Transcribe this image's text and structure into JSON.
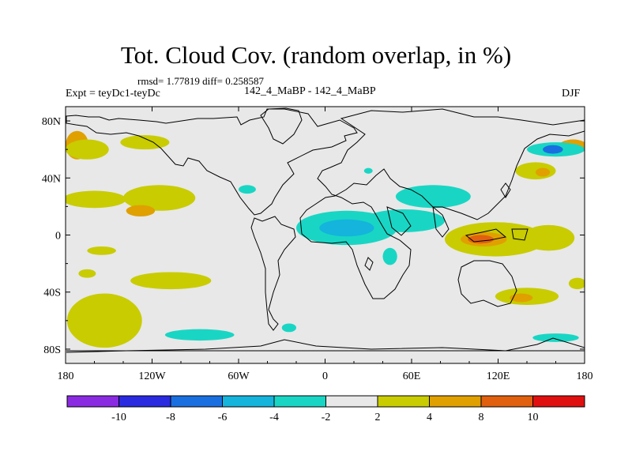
{
  "header": {
    "title": "Tot. Cloud Cov. (random overlap, in %)",
    "stats": "rmsd= 1.77819 diff= 0.258587",
    "expt": "Expt = teyDc1-teyDc",
    "experiment_name": "142_4_MaBP - 142_4_MaBP",
    "season": "DJF"
  },
  "chart_data": {
    "type": "heatmap",
    "title": "Tot. Cloud Cov. (random overlap, in %)",
    "subtitle": "142_4_MaBP - 142_4_MaBP",
    "xlabel": "",
    "ylabel": "",
    "x_ticks": [
      {
        "value": -180,
        "label": "180"
      },
      {
        "value": -120,
        "label": "120W"
      },
      {
        "value": -60,
        "label": "60W"
      },
      {
        "value": 0,
        "label": "0"
      },
      {
        "value": 60,
        "label": "60E"
      },
      {
        "value": 120,
        "label": "120E"
      },
      {
        "value": 180,
        "label": "180"
      }
    ],
    "y_ticks": [
      {
        "value": 80,
        "label": "80N"
      },
      {
        "value": 40,
        "label": "40N"
      },
      {
        "value": 0,
        "label": "0"
      },
      {
        "value": -40,
        "label": "40S"
      },
      {
        "value": -80,
        "label": "80S"
      }
    ],
    "xlim": [
      -180,
      180
    ],
    "ylim": [
      -90,
      90
    ],
    "grid": false,
    "colorbar": {
      "placement": "bottom",
      "bins": [
        {
          "range": "< -10",
          "color": "#8a2be2"
        },
        {
          "range": "-10 to -8",
          "color": "#2a2ae0"
        },
        {
          "range": "-8 to -6",
          "color": "#1a6fe0"
        },
        {
          "range": "-6 to -4",
          "color": "#14b4dc"
        },
        {
          "range": "-4 to -2",
          "color": "#19d6c4"
        },
        {
          "range": "-2 to 2",
          "color": "#e8e8e8"
        },
        {
          "range": "2 to 4",
          "color": "#c8cc00"
        },
        {
          "range": "4 to 8",
          "color": "#e0a000"
        },
        {
          "range": "8 to 10",
          "color": "#e06010"
        },
        {
          "range": "> 10",
          "color": "#e01010"
        }
      ],
      "labels": [
        "-10",
        "-8",
        "-6",
        "-4",
        "-2",
        "2",
        "4",
        "8",
        "10"
      ]
    },
    "anomaly_regions": [
      {
        "lon": -172,
        "lat": 63,
        "rlon": 8,
        "rlat": 10,
        "level": 2
      },
      {
        "lon": -165,
        "lat": 60,
        "rlon": 15,
        "rlat": 7,
        "level": 1
      },
      {
        "lon": -125,
        "lat": 65,
        "rlon": 17,
        "rlat": 5,
        "level": 1
      },
      {
        "lon": -160,
        "lat": 25,
        "rlon": 22,
        "rlat": 6,
        "level": 1
      },
      {
        "lon": -115,
        "lat": 26,
        "rlon": 25,
        "rlat": 9,
        "level": 1
      },
      {
        "lon": -128,
        "lat": 17,
        "rlon": 10,
        "rlat": 4,
        "level": 2
      },
      {
        "lon": -155,
        "lat": -11,
        "rlon": 10,
        "rlat": 3,
        "level": 1
      },
      {
        "lon": -165,
        "lat": -27,
        "rlon": 6,
        "rlat": 3,
        "level": 1
      },
      {
        "lon": -153,
        "lat": -60,
        "rlon": 26,
        "rlat": 19,
        "level": 1
      },
      {
        "lon": -107,
        "lat": -32,
        "rlon": 28,
        "rlat": 6,
        "level": 1
      },
      {
        "lon": 118,
        "lat": -3,
        "rlon": 35,
        "rlat": 12,
        "level": 1
      },
      {
        "lon": 155,
        "lat": -2,
        "rlon": 18,
        "rlat": 9,
        "level": 1
      },
      {
        "lon": 110,
        "lat": -3,
        "rlon": 16,
        "rlat": 5,
        "level": 2
      },
      {
        "lon": 108,
        "lat": -3,
        "rlon": 9,
        "rlat": 3,
        "level": 3
      },
      {
        "lon": 146,
        "lat": 45,
        "rlon": 14,
        "rlat": 6,
        "level": 1
      },
      {
        "lon": 151,
        "lat": 44,
        "rlon": 5,
        "rlat": 3,
        "level": 2
      },
      {
        "lon": 172,
        "lat": 62,
        "rlon": 10,
        "rlat": 5,
        "level": 2
      },
      {
        "lon": 140,
        "lat": -43,
        "rlon": 22,
        "rlat": 6,
        "level": 1
      },
      {
        "lon": 136,
        "lat": -44,
        "rlon": 8,
        "rlat": 3,
        "level": 2
      },
      {
        "lon": 175,
        "lat": -34,
        "rlon": 6,
        "rlat": 4,
        "level": 1
      },
      {
        "lon": 15,
        "lat": 5,
        "rlon": 35,
        "rlat": 12,
        "level": -1
      },
      {
        "lon": 55,
        "lat": 10,
        "rlon": 28,
        "rlat": 8,
        "level": -1
      },
      {
        "lon": 15,
        "lat": 5,
        "rlon": 19,
        "rlat": 6,
        "level": -2
      },
      {
        "lon": 75,
        "lat": 27,
        "rlon": 26,
        "rlat": 8,
        "level": -1
      },
      {
        "lon": 45,
        "lat": -15,
        "rlon": 5,
        "rlat": 6,
        "level": -1
      },
      {
        "lon": 160,
        "lat": 60,
        "rlon": 20,
        "rlat": 5,
        "level": -1
      },
      {
        "lon": 158,
        "lat": 60,
        "rlon": 7,
        "rlat": 3,
        "level": -3
      },
      {
        "lon": -87,
        "lat": -70,
        "rlon": 24,
        "rlat": 4,
        "level": -1
      },
      {
        "lon": -54,
        "lat": 32,
        "rlon": 6,
        "rlat": 3,
        "level": -1
      },
      {
        "lon": -25,
        "lat": -65,
        "rlon": 5,
        "rlat": 3,
        "level": -1
      },
      {
        "lon": 30,
        "lat": 45,
        "rlon": 3,
        "rlat": 2,
        "level": -1
      },
      {
        "lon": 160,
        "lat": -72,
        "rlon": 16,
        "rlat": 3,
        "level": -1
      }
    ]
  }
}
